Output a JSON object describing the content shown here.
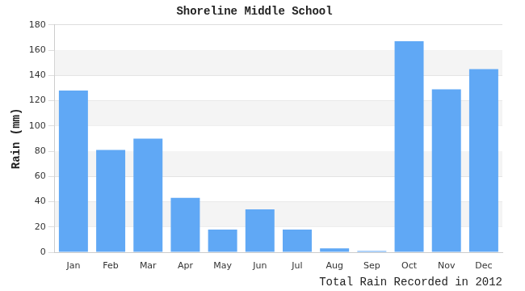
{
  "chart_data": {
    "type": "bar",
    "title": "Shoreline Middle School",
    "y_label": "Rain (mm)",
    "x_label": "Total Rain Recorded in 2012",
    "categories": [
      "Jan",
      "Feb",
      "Mar",
      "Apr",
      "May",
      "Jun",
      "Jul",
      "Aug",
      "Sep",
      "Oct",
      "Nov",
      "Dec"
    ],
    "values": [
      128,
      81,
      90,
      43,
      18,
      34,
      18,
      3,
      1,
      167,
      129,
      145
    ],
    "color": "#60a8f5",
    "ylim": [
      0,
      180
    ],
    "yticks": [
      0,
      20,
      40,
      60,
      80,
      100,
      120,
      140,
      160,
      180
    ],
    "grid": true
  }
}
